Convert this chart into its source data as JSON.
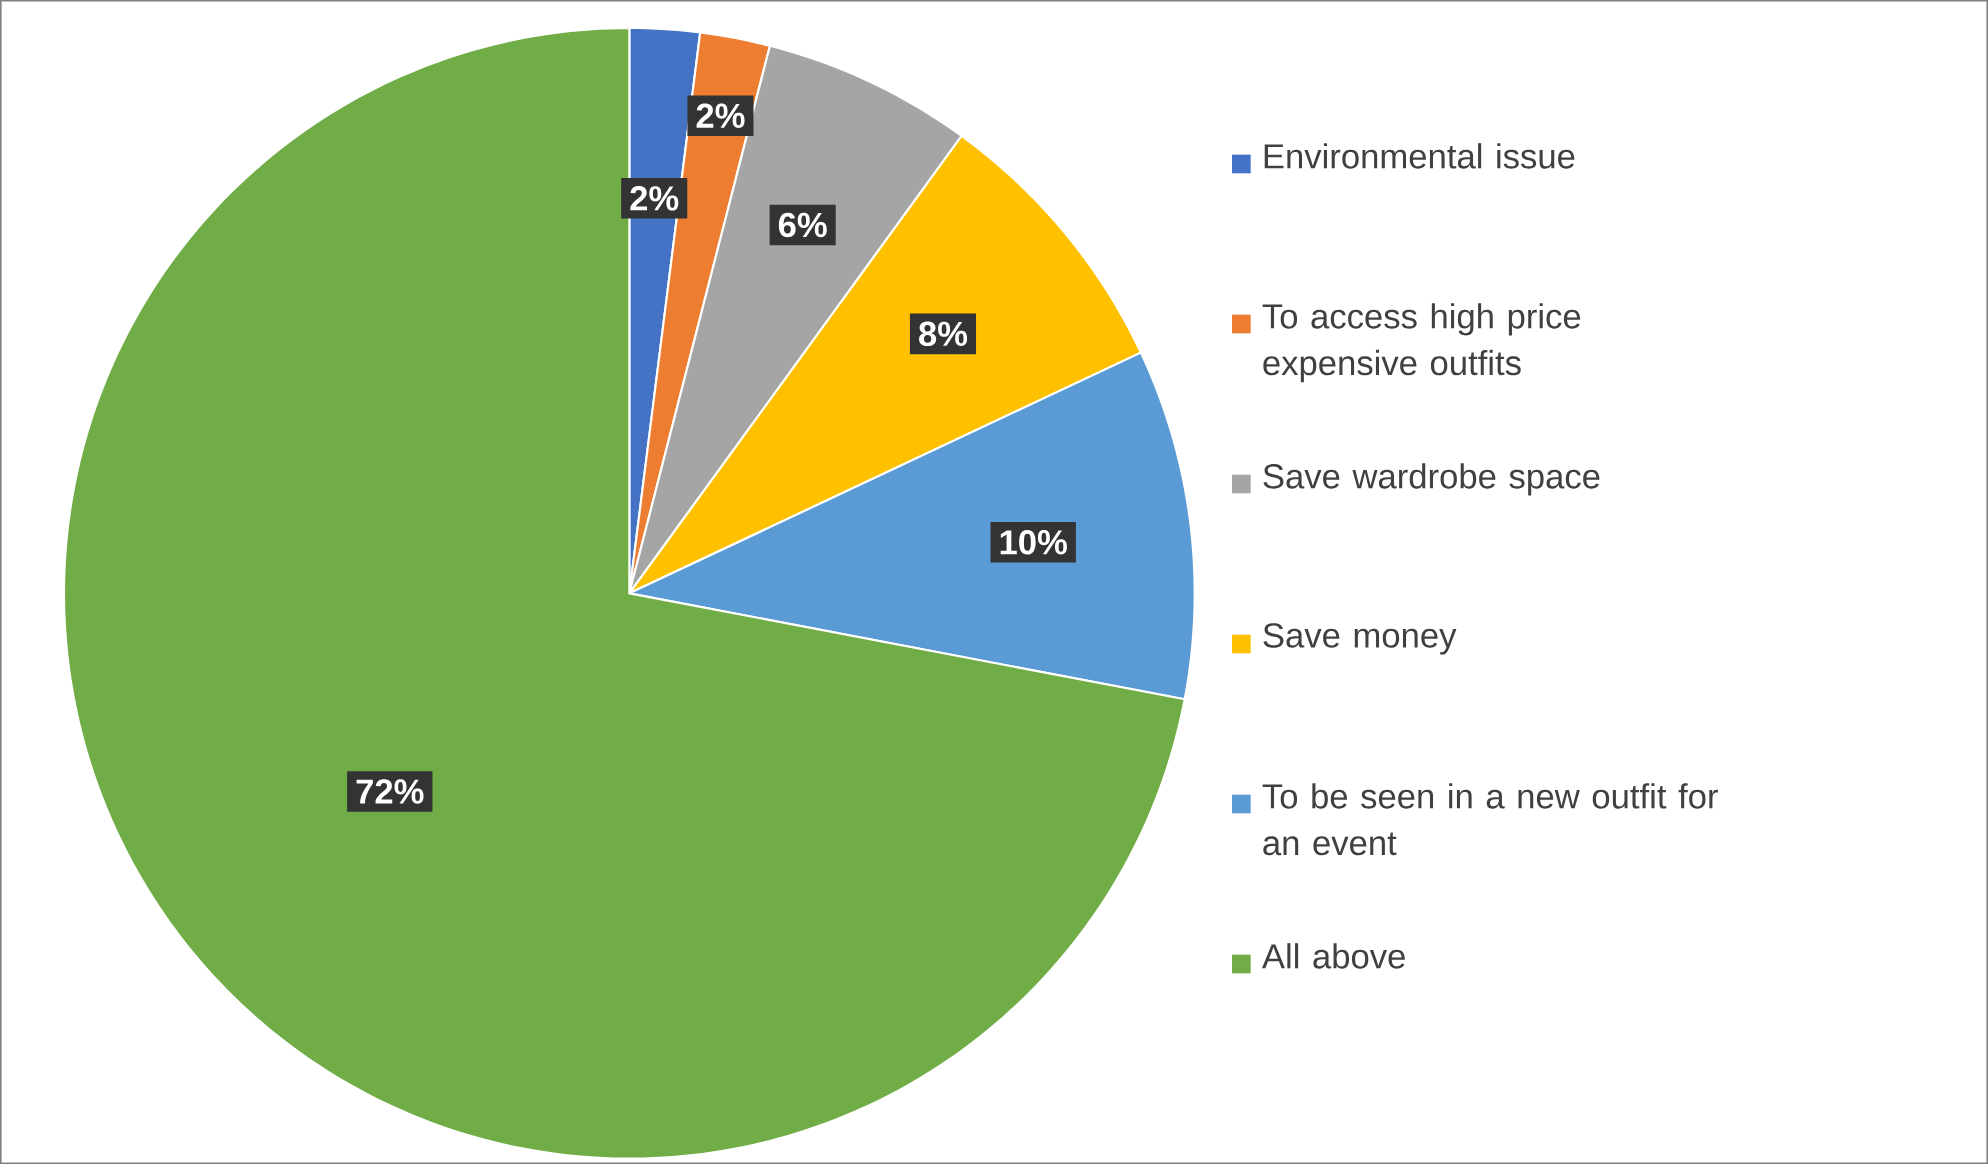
{
  "chart_data": {
    "type": "pie",
    "categories": [
      "Environmental issue",
      "To access high price expensive outfits",
      "Save wardrobe space",
      "Save money",
      "To be seen in a new outfit for an event",
      "All above"
    ],
    "values": [
      2,
      2,
      6,
      8,
      10,
      72
    ],
    "value_labels": [
      "2%",
      "2%",
      "6%",
      "8%",
      "10%",
      "72%"
    ],
    "colors": [
      "#4472c4",
      "#ed7d31",
      "#a5a5a5",
      "#ffc000",
      "#5b9bd5",
      "#70ad47"
    ],
    "legend": "right"
  }
}
